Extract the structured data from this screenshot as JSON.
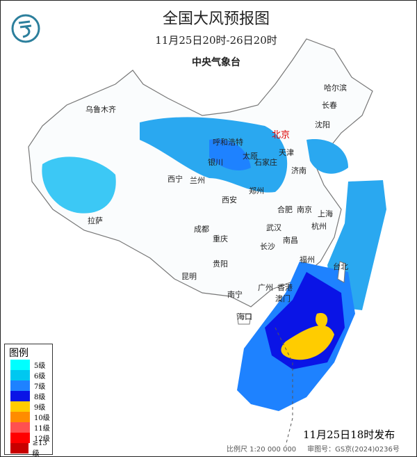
{
  "title": "全国大风预报图",
  "time_range": "11月25日20时-26日20时",
  "agency": "中央气象台",
  "legend": {
    "title": "图例",
    "items": [
      {
        "label": "5级",
        "color": "#00ffff"
      },
      {
        "label": "6级",
        "color": "#00c8f0"
      },
      {
        "label": "7级",
        "color": "#1e82ff"
      },
      {
        "label": "8级",
        "color": "#0a14e6"
      },
      {
        "label": "9级",
        "color": "#ffcc00"
      },
      {
        "label": "10级",
        "color": "#ff8c00"
      },
      {
        "label": "11级",
        "color": "#ff5050"
      },
      {
        "label": "12级",
        "color": "#ff0000"
      },
      {
        "label": "≥13级",
        "color": "#c80000"
      }
    ]
  },
  "cities": [
    "乌鲁木齐",
    "哈尔滨",
    "长春",
    "沈阳",
    "北京",
    "呼和浩特",
    "天津",
    "银川",
    "太原",
    "石家庄",
    "济南",
    "西宁",
    "兰州",
    "郑州",
    "西安",
    "合肥",
    "南京",
    "上海",
    "拉萨",
    "成都",
    "武汉",
    "杭州",
    "重庆",
    "长沙",
    "南昌",
    "福州",
    "台北",
    "贵阳",
    "昆明",
    "南宁",
    "广州",
    "香港",
    "澳门",
    "海口"
  ],
  "issued": "11月25日18时发布",
  "scale": "比例尺 1:20 000 000",
  "map_approval": "审图号：GS京(2024)0236号"
}
